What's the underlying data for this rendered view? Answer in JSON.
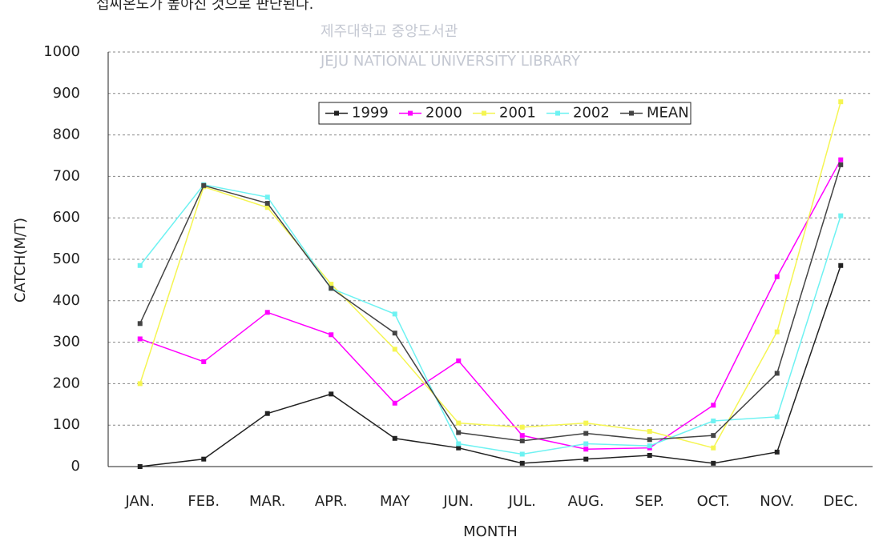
{
  "header_text": "섭씨온도가 높아진 것으로 판단된다.",
  "watermark": {
    "title": "제주대학교 중앙도서관",
    "subtitle": "JEJU NATIONAL UNIVERSITY LIBRARY"
  },
  "chart_data": {
    "type": "line",
    "xlabel": "MONTH",
    "ylabel": "CATCH(M/T)",
    "categories": [
      "JAN.",
      "FEB.",
      "MAR.",
      "APR.",
      "MAY",
      "JUN.",
      "JUL.",
      "AUG.",
      "SEP.",
      "OCT.",
      "NOV.",
      "DEC."
    ],
    "series": [
      {
        "name": "1999",
        "color": "#222222",
        "values": [
          0,
          18,
          128,
          175,
          68,
          45,
          8,
          18,
          27,
          8,
          35,
          485
        ]
      },
      {
        "name": "2000",
        "color": "#ff00ff",
        "values": [
          308,
          253,
          372,
          318,
          153,
          255,
          75,
          42,
          45,
          148,
          458,
          740
        ]
      },
      {
        "name": "2001",
        "color": "#f5f552",
        "values": [
          200,
          675,
          625,
          440,
          283,
          105,
          95,
          105,
          85,
          45,
          325,
          880
        ]
      },
      {
        "name": "2002",
        "color": "#6ef2f2",
        "values": [
          485,
          680,
          650,
          430,
          368,
          55,
          30,
          55,
          50,
          110,
          120,
          605
        ]
      },
      {
        "name": "MEAN",
        "color": "#444444",
        "values": [
          345,
          678,
          635,
          430,
          322,
          82,
          62,
          80,
          65,
          75,
          225,
          728
        ]
      }
    ],
    "ylim": [
      0,
      1000
    ],
    "yticks": [
      0,
      100,
      200,
      300,
      400,
      500,
      600,
      700,
      800,
      900,
      1000
    ],
    "grid": true,
    "legend": "top"
  }
}
